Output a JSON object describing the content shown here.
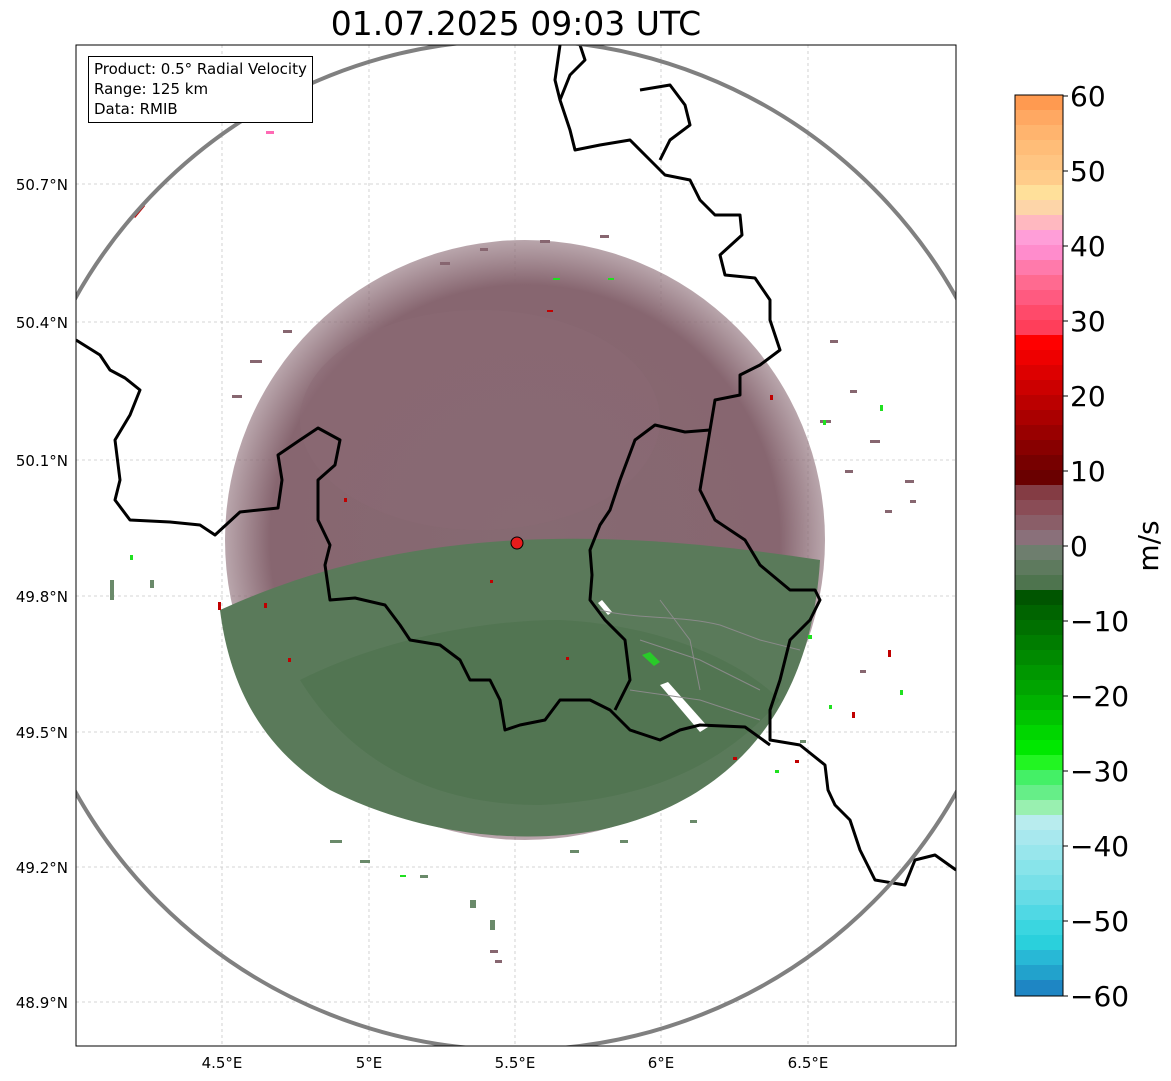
{
  "title": "01.07.2025 09:03 UTC",
  "info": {
    "product": "Product: 0.5° Radial Velocity",
    "range": "Range: 125 km",
    "data_source": "Data: RMIB"
  },
  "map": {
    "lon_ticks": [
      "4.5°E",
      "5°E",
      "5.5°E",
      "6°E",
      "6.5°E"
    ],
    "lat_ticks": [
      "50.7°N",
      "50.4°N",
      "50.1°N",
      "49.8°N",
      "49.5°N",
      "49.2°N",
      "48.9°N"
    ],
    "radar_site": {
      "lon": 5.5,
      "lat": 49.91
    },
    "range_ring_color": "#808080",
    "border_color": "#000000"
  },
  "colorbar": {
    "label": "m/s",
    "ticks": [
      "60",
      "50",
      "40",
      "30",
      "20",
      "10",
      "0",
      "−10",
      "−20",
      "−30",
      "−40",
      "−50",
      "−60"
    ],
    "min": -60,
    "max": 60
  },
  "colors": {
    "receding": "#876670",
    "approaching": "#5a7a5a",
    "radar_marker": "#e81c1c"
  }
}
